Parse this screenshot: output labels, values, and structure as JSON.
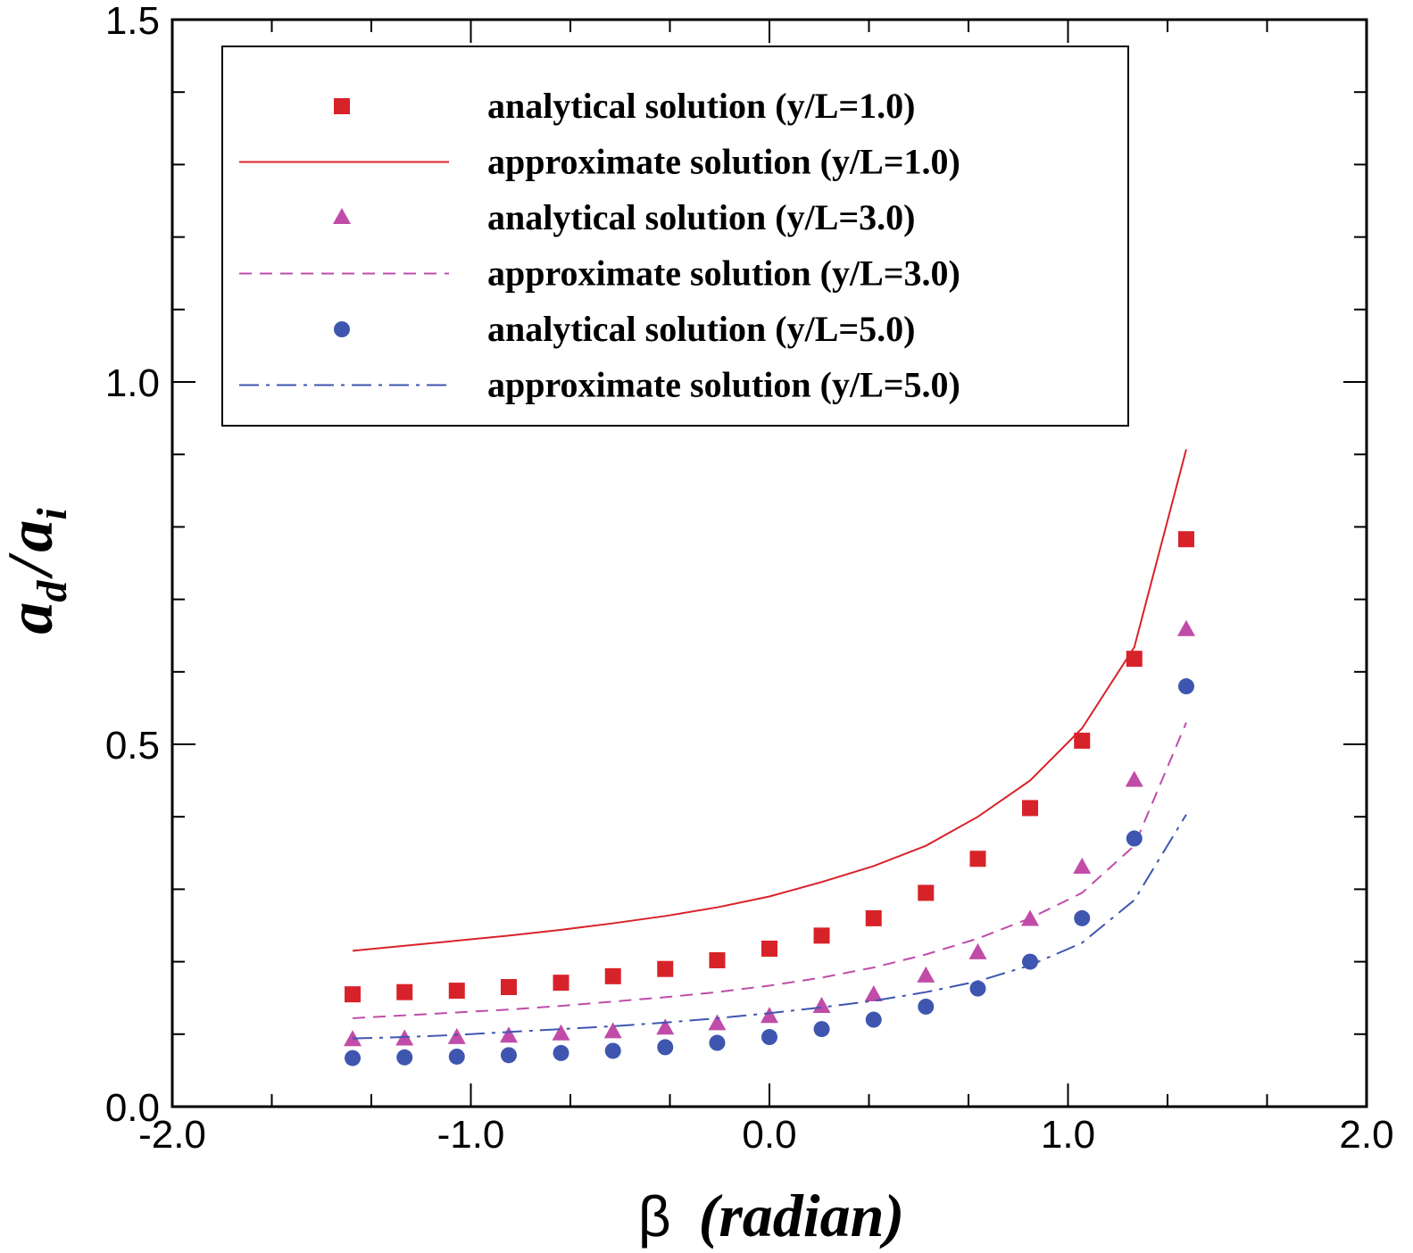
{
  "chart_data": {
    "type": "scatter",
    "title": "",
    "xlabel": {
      "symbol": "β",
      "text": "(radian)"
    },
    "ylabel": {
      "a_d": "a",
      "d_sub": "d",
      "slash": "/",
      "a_i": "a",
      "i_sub": "i"
    },
    "xlim": [
      -2.0,
      2.0
    ],
    "ylim": [
      0.0,
      1.5
    ],
    "x_ticks": [
      "-2.0",
      "-1.0",
      "0.0",
      "1.0",
      "2.0"
    ],
    "y_ticks": [
      "0.0",
      "0.5",
      "1.0",
      "1.5"
    ],
    "grid": false,
    "legend_position": "top",
    "series": [
      {
        "name": "analytical solution (y/L=1.0)",
        "style": "marker",
        "marker": "square",
        "color": "#d8222a",
        "x": [
          -1.396,
          -1.222,
          -1.047,
          -0.873,
          -0.698,
          -0.524,
          -0.349,
          -0.175,
          0.0,
          0.175,
          0.349,
          0.524,
          0.698,
          0.873,
          1.047,
          1.222,
          1.396
        ],
        "y": [
          0.155,
          0.158,
          0.16,
          0.165,
          0.171,
          0.18,
          0.19,
          0.202,
          0.218,
          0.236,
          0.26,
          0.295,
          0.342,
          0.412,
          0.505,
          0.618,
          0.783
        ]
      },
      {
        "name": "approximate solution (y/L=1.0)",
        "style": "solid",
        "color": "#d8222a",
        "x": [
          -1.396,
          -1.222,
          -1.047,
          -0.873,
          -0.698,
          -0.524,
          -0.349,
          -0.175,
          0.0,
          0.175,
          0.349,
          0.524,
          0.698,
          0.873,
          1.047,
          1.222,
          1.396
        ],
        "y": [
          0.215,
          0.222,
          0.229,
          0.236,
          0.244,
          0.253,
          0.263,
          0.275,
          0.29,
          0.31,
          0.332,
          0.36,
          0.4,
          0.45,
          0.522,
          0.634,
          0.907
        ]
      },
      {
        "name": "analytical solution (y/L=3.0)",
        "style": "marker",
        "marker": "triangle",
        "color": "#c04ca8",
        "x": [
          -1.396,
          -1.222,
          -1.047,
          -0.873,
          -0.698,
          -0.524,
          -0.349,
          -0.175,
          0.0,
          0.175,
          0.349,
          0.524,
          0.698,
          0.873,
          1.047,
          1.222,
          1.396
        ],
        "y": [
          0.092,
          0.093,
          0.095,
          0.097,
          0.1,
          0.103,
          0.108,
          0.114,
          0.124,
          0.138,
          0.154,
          0.18,
          0.212,
          0.258,
          0.33,
          0.45,
          0.658
        ]
      },
      {
        "name": "approximate solution (y/L=3.0)",
        "style": "dashed",
        "color": "#c04ca8",
        "x": [
          -1.396,
          -1.222,
          -1.047,
          -0.873,
          -0.698,
          -0.524,
          -0.349,
          -0.175,
          0.0,
          0.175,
          0.349,
          0.524,
          0.698,
          0.873,
          1.047,
          1.222,
          1.396
        ],
        "y": [
          0.122,
          0.126,
          0.13,
          0.134,
          0.139,
          0.145,
          0.151,
          0.158,
          0.167,
          0.178,
          0.192,
          0.21,
          0.232,
          0.26,
          0.295,
          0.36,
          0.53
        ]
      },
      {
        "name": "analytical solution (y/L=5.0)",
        "style": "marker",
        "marker": "circle",
        "color": "#3f56b0",
        "x": [
          -1.396,
          -1.222,
          -1.047,
          -0.873,
          -0.698,
          -0.524,
          -0.349,
          -0.175,
          0.0,
          0.175,
          0.349,
          0.524,
          0.698,
          0.873,
          1.047,
          1.222,
          1.396
        ],
        "y": [
          0.067,
          0.068,
          0.069,
          0.071,
          0.074,
          0.077,
          0.082,
          0.088,
          0.096,
          0.107,
          0.12,
          0.138,
          0.163,
          0.2,
          0.26,
          0.37,
          0.58
        ]
      },
      {
        "name": "approximate solution (y/L=5.0)",
        "style": "dashdot",
        "color": "#3f56b0",
        "x": [
          -1.396,
          -1.222,
          -1.047,
          -0.873,
          -0.698,
          -0.524,
          -0.349,
          -0.175,
          0.0,
          0.175,
          0.349,
          0.524,
          0.698,
          0.873,
          1.047,
          1.222,
          1.396
        ],
        "y": [
          0.094,
          0.096,
          0.099,
          0.103,
          0.107,
          0.111,
          0.116,
          0.122,
          0.129,
          0.137,
          0.146,
          0.158,
          0.173,
          0.195,
          0.226,
          0.285,
          0.403
        ]
      }
    ]
  }
}
